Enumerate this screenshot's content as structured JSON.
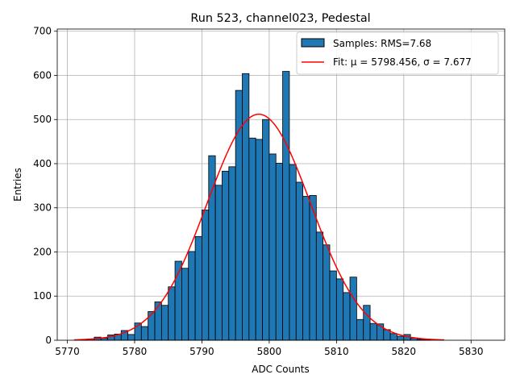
{
  "chart_data": {
    "type": "bar",
    "title": "Run 523, channel023, Pedestal",
    "xlabel": "ADC Counts",
    "ylabel": "Entries",
    "xlim": [
      5768.5,
      5835
    ],
    "ylim": [
      0,
      705
    ],
    "xticks": [
      5770,
      5780,
      5790,
      5800,
      5810,
      5820,
      5830
    ],
    "yticks": [
      0,
      100,
      200,
      300,
      400,
      500,
      600,
      700
    ],
    "grid": true,
    "legend_position": "top-right",
    "colors": {
      "bars": "#1f77b4",
      "bar_edge": "#000000",
      "fit": "#ff0000"
    },
    "histogram": {
      "name": "Samples: RMS=7.68",
      "bin_width": 1,
      "bin_starts": [
        5771,
        5772,
        5773,
        5774,
        5775,
        5776,
        5777,
        5778,
        5779,
        5780,
        5781,
        5782,
        5783,
        5784,
        5785,
        5786,
        5787,
        5788,
        5789,
        5790,
        5791,
        5792,
        5793,
        5794,
        5795,
        5796,
        5797,
        5798,
        5799,
        5800,
        5801,
        5802,
        5803,
        5804,
        5805,
        5806,
        5807,
        5808,
        5809,
        5810,
        5811,
        5812,
        5813,
        5814,
        5815,
        5816,
        5817,
        5818,
        5819,
        5820,
        5821,
        5822,
        5823,
        5824,
        5825,
        5826
      ],
      "values": [
        0,
        1,
        3,
        7,
        5,
        12,
        14,
        22,
        13,
        39,
        31,
        65,
        87,
        79,
        121,
        179,
        163,
        201,
        235,
        295,
        418,
        351,
        383,
        393,
        566,
        604,
        458,
        455,
        500,
        422,
        401,
        609,
        398,
        358,
        326,
        328,
        245,
        216,
        157,
        139,
        108,
        143,
        47,
        79,
        38,
        37,
        24,
        15,
        9,
        13,
        5,
        2,
        1,
        0,
        0,
        0
      ]
    },
    "fit": {
      "name": "Fit: μ = 5798.456, σ = 7.677",
      "mu": 5798.456,
      "sigma": 7.677,
      "amplitude": 512,
      "x_range": [
        5771,
        5826
      ]
    }
  }
}
